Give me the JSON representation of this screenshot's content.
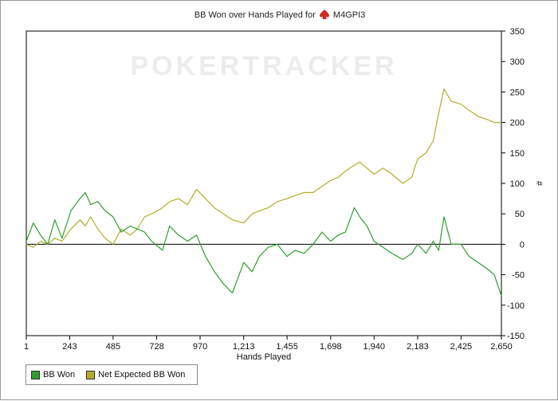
{
  "chart_data": {
    "type": "line",
    "title": "BB Won over Hands Played for",
    "player": "M4GPI3",
    "watermark": "POKERTRACKER",
    "xlabel": "Hands Played",
    "ylabel": "#",
    "xlim": [
      1,
      2650
    ],
    "ylim": [
      -150,
      350
    ],
    "x_ticks": [
      "1",
      "243",
      "485",
      "728",
      "970",
      "1,213",
      "1,455",
      "1,698",
      "1,940",
      "2,183",
      "2,425",
      "2,650"
    ],
    "x_tick_values": [
      1,
      243,
      485,
      728,
      970,
      1213,
      1455,
      1698,
      1940,
      2183,
      2425,
      2650
    ],
    "y_ticks": [
      350,
      300,
      250,
      200,
      150,
      100,
      50,
      0,
      -50,
      -100,
      -150
    ],
    "grid": false,
    "zero_line": true,
    "legend_position": "bottom-left",
    "series": [
      {
        "name": "BB Won",
        "color": "#2e9e2e",
        "x": [
          1,
          40,
          80,
          120,
          160,
          200,
          250,
          300,
          330,
          360,
          400,
          440,
          485,
          530,
          580,
          620,
          660,
          700,
          760,
          800,
          850,
          900,
          950,
          1000,
          1050,
          1100,
          1150,
          1213,
          1260,
          1300,
          1350,
          1400,
          1455,
          1500,
          1550,
          1600,
          1650,
          1698,
          1740,
          1780,
          1830,
          1860,
          1900,
          1940,
          1990,
          2040,
          2100,
          2150,
          2183,
          2230,
          2270,
          2300,
          2330,
          2370,
          2425,
          2470,
          2520,
          2570,
          2610,
          2650
        ],
        "y": [
          5,
          35,
          15,
          0,
          40,
          10,
          55,
          75,
          85,
          65,
          70,
          55,
          45,
          20,
          30,
          25,
          20,
          5,
          -10,
          30,
          15,
          5,
          15,
          -20,
          -45,
          -65,
          -80,
          -30,
          -45,
          -20,
          -5,
          0,
          -20,
          -10,
          -15,
          0,
          20,
          5,
          15,
          20,
          60,
          45,
          30,
          5,
          -5,
          -15,
          -25,
          -15,
          0,
          -15,
          5,
          -10,
          45,
          0,
          0,
          -20,
          -30,
          -40,
          -50,
          -85
        ]
      },
      {
        "name": "Net Expected BB Won",
        "color": "#b3ad2a",
        "x": [
          1,
          40,
          80,
          120,
          160,
          200,
          250,
          300,
          330,
          360,
          400,
          440,
          485,
          530,
          580,
          620,
          660,
          700,
          760,
          800,
          850,
          900,
          950,
          1000,
          1050,
          1100,
          1150,
          1213,
          1260,
          1300,
          1350,
          1400,
          1455,
          1500,
          1550,
          1600,
          1650,
          1698,
          1740,
          1780,
          1830,
          1860,
          1900,
          1940,
          1990,
          2040,
          2100,
          2150,
          2183,
          2230,
          2270,
          2300,
          2330,
          2370,
          2425,
          2470,
          2520,
          2570,
          2610,
          2650
        ],
        "y": [
          0,
          -5,
          5,
          0,
          10,
          5,
          25,
          40,
          30,
          45,
          25,
          10,
          0,
          25,
          15,
          25,
          45,
          50,
          60,
          70,
          75,
          65,
          90,
          75,
          60,
          50,
          40,
          35,
          50,
          55,
          60,
          70,
          75,
          80,
          85,
          85,
          95,
          105,
          110,
          120,
          130,
          135,
          125,
          115,
          125,
          115,
          100,
          110,
          140,
          150,
          170,
          215,
          255,
          235,
          230,
          220,
          210,
          205,
          200,
          200
        ]
      }
    ]
  }
}
